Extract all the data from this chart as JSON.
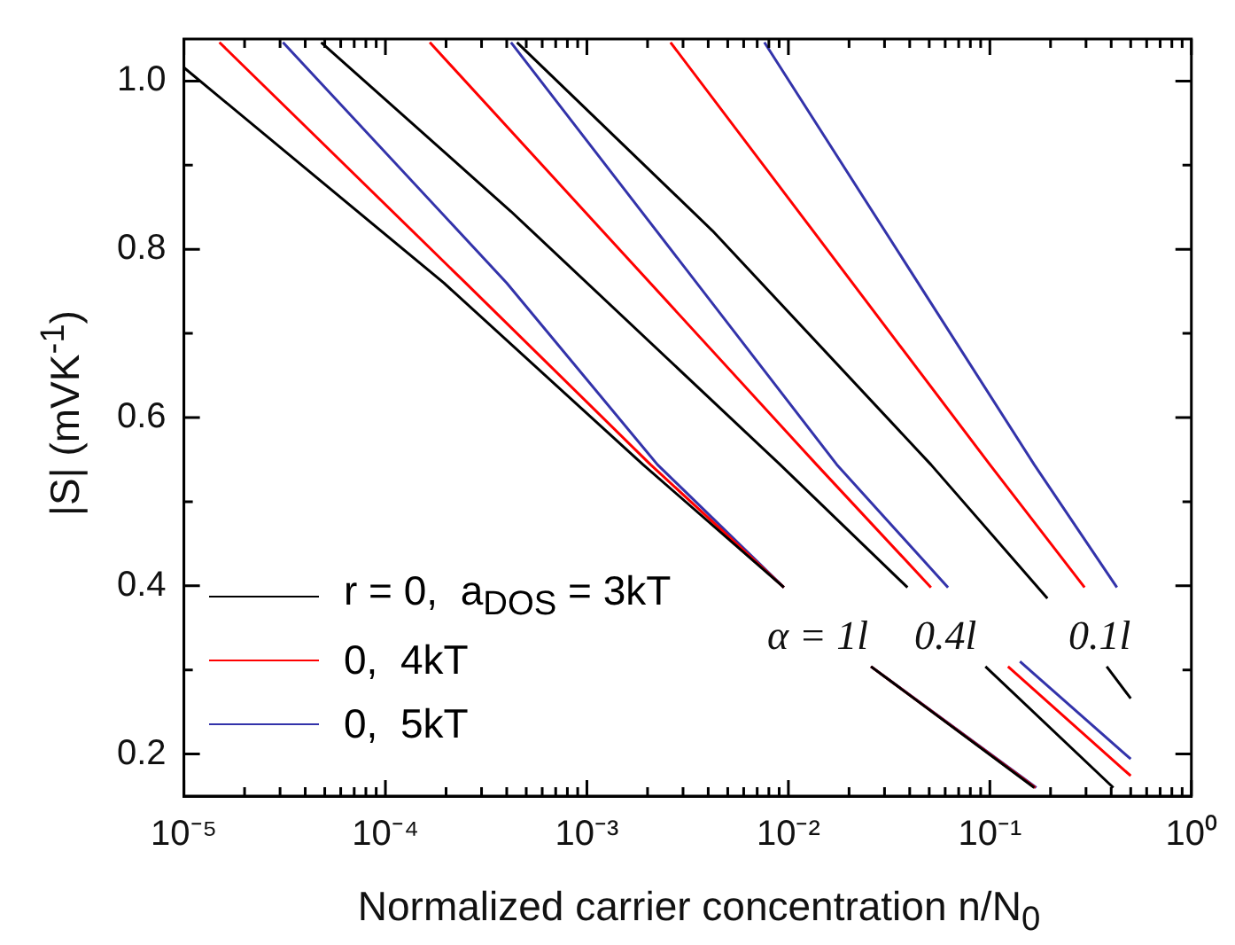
{
  "chart_data": {
    "type": "line",
    "xlabel": "Normalized carrier concentration n/N$_{0}$",
    "ylabel": "|S|  (mVK$^{-1}$)",
    "log": "x",
    "xlim": [
      1e-05,
      1
    ],
    "ylim": [
      0.15,
      1.05
    ],
    "xticks": [
      {
        "value": 1e-05,
        "label": "10⁻⁵"
      },
      {
        "value": 2e-05,
        "label": null
      },
      {
        "value": 3e-05,
        "label": null
      },
      {
        "value": 4e-05,
        "label": null
      },
      {
        "value": 5e-05,
        "label": null
      },
      {
        "value": 6e-05,
        "label": null
      },
      {
        "value": 7e-05,
        "label": null
      },
      {
        "value": 8e-05,
        "label": null
      },
      {
        "value": 9e-05,
        "label": null
      },
      {
        "value": 0.0001,
        "label": "10⁻⁴"
      },
      {
        "value": 0.0002,
        "label": null
      },
      {
        "value": 0.0003,
        "label": null
      },
      {
        "value": 0.0004,
        "label": null
      },
      {
        "value": 0.0005,
        "label": null
      },
      {
        "value": 0.0006,
        "label": null
      },
      {
        "value": 0.0007,
        "label": null
      },
      {
        "value": 0.0008,
        "label": null
      },
      {
        "value": 0.0009,
        "label": null
      },
      {
        "value": 0.001,
        "label": "10⁻³"
      },
      {
        "value": 0.002,
        "label": null
      },
      {
        "value": 0.003,
        "label": null
      },
      {
        "value": 0.004,
        "label": null
      },
      {
        "value": 0.005,
        "label": null
      },
      {
        "value": 0.006,
        "label": null
      },
      {
        "value": 0.007,
        "label": null
      },
      {
        "value": 0.008,
        "label": null
      },
      {
        "value": 0.009,
        "label": null
      },
      {
        "value": 0.01,
        "label": "10⁻²"
      },
      {
        "value": 0.02,
        "label": null
      },
      {
        "value": 0.03,
        "label": null
      },
      {
        "value": 0.04,
        "label": null
      },
      {
        "value": 0.05,
        "label": null
      },
      {
        "value": 0.06,
        "label": null
      },
      {
        "value": 0.07,
        "label": null
      },
      {
        "value": 0.08,
        "label": null
      },
      {
        "value": 0.09,
        "label": null
      },
      {
        "value": 0.1,
        "label": "10⁻¹"
      },
      {
        "value": 0.2,
        "label": null
      },
      {
        "value": 0.3,
        "label": null
      },
      {
        "value": 0.4,
        "label": null
      },
      {
        "value": 0.5,
        "label": null
      },
      {
        "value": 0.6,
        "label": null
      },
      {
        "value": 0.7,
        "label": null
      },
      {
        "value": 0.8,
        "label": null
      },
      {
        "value": 0.9,
        "label": null
      },
      {
        "value": 1,
        "label": "10⁰"
      }
    ],
    "yticks": [
      0.2,
      {
        "value": 0.3,
        "label": null
      },
      0.4,
      {
        "value": 0.5,
        "label": null
      },
      0.6,
      {
        "value": 0.7,
        "label": null
      },
      0.8,
      {
        "value": 0.9,
        "label": null
      },
      {
        "value": 1.0,
        "label": "1.0"
      }
    ],
    "grid": false,
    "legend": "bottom left",
    "marker": "none",
    "line_style": "solid",
    "series": [
      {
        "name": "r = 0,  a$_{DOS}$ = 3kT",
        "color": "#000000",
        "x": [
          1e-05,
          0.000195,
          0.0019,
          0.0095,
          0.015,
          0.0257,
          0.166
        ],
        "values": [
          1.016,
          0.76,
          0.544,
          0.398,
          null,
          0.304,
          0.16
        ]
      },
      {
        "name": "0,  4kT",
        "color": "#ff0000",
        "x": [
          1.5e-05,
          0.00025,
          0.00207,
          0.0095,
          0.015,
          0.0257,
          0.168
        ],
        "values": [
          1.046,
          0.76,
          0.544,
          0.398,
          null,
          0.304,
          0.16
        ]
      },
      {
        "name": "0,  5kT",
        "color": "#3333aa",
        "x": [
          3.1e-05,
          0.0004,
          0.00224,
          0.0095,
          0.015,
          0.0257,
          0.17
        ],
        "values": [
          1.046,
          0.76,
          0.544,
          0.398,
          null,
          0.304,
          0.16
        ]
      },
      {
        "color": "#000000",
        "x": [
          4.8e-05,
          0.00042,
          0.0091,
          0.039,
          0.06,
          0.095,
          0.41
        ],
        "values": [
          1.046,
          0.845,
          0.544,
          0.398,
          null,
          0.304,
          0.16
        ]
      },
      {
        "color": "#ff0000",
        "x": [
          0.000166,
          0.0138,
          0.051,
          0.08,
          0.123,
          0.5
        ],
        "values": [
          1.046,
          0.544,
          0.398,
          null,
          0.304,
          0.174
        ]
      },
      {
        "color": "#3333aa",
        "x": [
          0.00042,
          0.0174,
          0.062,
          0.1,
          0.141,
          0.5
        ],
        "values": [
          1.046,
          0.544,
          0.398,
          null,
          0.31,
          0.194
        ]
      },
      {
        "color": "#000000",
        "x": [
          0.00045,
          0.0042,
          0.051,
          0.193,
          0.3,
          0.38,
          0.5
        ],
        "values": [
          1.046,
          0.822,
          0.544,
          0.385,
          null,
          0.304,
          0.266
        ]
      },
      {
        "color": "#ff0000",
        "x": [
          0.0026,
          0.1,
          0.295
        ],
        "values": [
          1.046,
          0.544,
          0.398
        ]
      },
      {
        "color": "#3333aa",
        "x": [
          0.0076,
          0.166,
          0.427
        ],
        "values": [
          1.046,
          0.544,
          0.398
        ]
      }
    ],
    "annotations": [
      "α = 1l",
      "0.4l",
      "0.1l"
    ]
  }
}
